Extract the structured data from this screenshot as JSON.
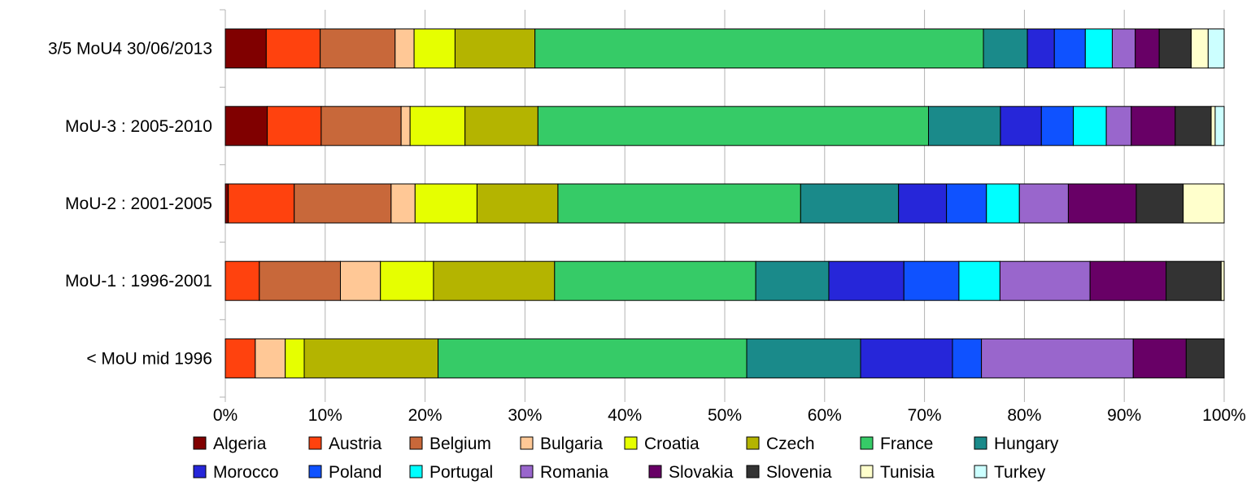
{
  "chart_data": {
    "type": "bar",
    "orientation": "horizontal",
    "stacked": "percent",
    "title": "",
    "xlabel": "",
    "ylabel": "",
    "xlim": [
      0,
      100
    ],
    "x_ticks": [
      "0%",
      "10%",
      "20%",
      "30%",
      "40%",
      "50%",
      "60%",
      "70%",
      "80%",
      "90%",
      "100%"
    ],
    "grid": "vertical",
    "legend_position": "bottom",
    "categories": [
      "3/5 MoU4 30/06/2013",
      "MoU-3 : 2005-2010",
      "MoU-2 : 2001-2005",
      "MoU-1 : 1996-2001",
      "< MoU mid 1996"
    ],
    "series": [
      {
        "name": "Algeria",
        "color": "#800000",
        "values": [
          4.1,
          4.2,
          0.3,
          0,
          0
        ]
      },
      {
        "name": "Austria",
        "color": "#ff420e",
        "values": [
          5.4,
          5.4,
          6.6,
          3.4,
          3.0
        ]
      },
      {
        "name": "Belgium",
        "color": "#c8683a",
        "values": [
          7.5,
          8.0,
          9.7,
          8.1,
          0
        ]
      },
      {
        "name": "Bulgaria",
        "color": "#ffc896",
        "values": [
          1.9,
          0.9,
          2.4,
          4.0,
          3.0
        ]
      },
      {
        "name": "Croatia",
        "color": "#e6ff00",
        "values": [
          4.1,
          5.5,
          6.2,
          5.3,
          1.9
        ]
      },
      {
        "name": "Czech",
        "color": "#b4b400",
        "values": [
          8.0,
          7.3,
          8.1,
          12.1,
          13.4
        ]
      },
      {
        "name": "France",
        "color": "#36cb67",
        "values": [
          44.9,
          39.1,
          24.3,
          20.1,
          30.9
        ]
      },
      {
        "name": "Hungary",
        "color": "#1a8a8a",
        "values": [
          4.4,
          7.2,
          9.8,
          7.3,
          11.4
        ]
      },
      {
        "name": "Morocco",
        "color": "#2626d9",
        "values": [
          2.7,
          4.1,
          4.8,
          7.5,
          9.2
        ]
      },
      {
        "name": "Poland",
        "color": "#0f52ff",
        "values": [
          3.1,
          3.2,
          4.0,
          5.5,
          2.9
        ]
      },
      {
        "name": "Portugal",
        "color": "#00ffff",
        "values": [
          2.7,
          3.3,
          3.3,
          4.1,
          0
        ]
      },
      {
        "name": "Romania",
        "color": "#9966cc",
        "values": [
          2.3,
          2.5,
          4.9,
          9.0,
          15.2
        ]
      },
      {
        "name": "Slovakia",
        "color": "#680066",
        "values": [
          2.4,
          4.4,
          6.8,
          7.6,
          5.3
        ]
      },
      {
        "name": "Slovenia",
        "color": "#333333",
        "values": [
          3.2,
          3.6,
          4.7,
          5.5,
          3.8
        ]
      },
      {
        "name": "Tunisia",
        "color": "#ffffcc",
        "values": [
          1.7,
          0.4,
          4.1,
          0.3,
          0
        ]
      },
      {
        "name": "Turkey",
        "color": "#ccffff",
        "values": [
          1.6,
          0.9,
          0,
          0,
          0
        ]
      }
    ]
  }
}
